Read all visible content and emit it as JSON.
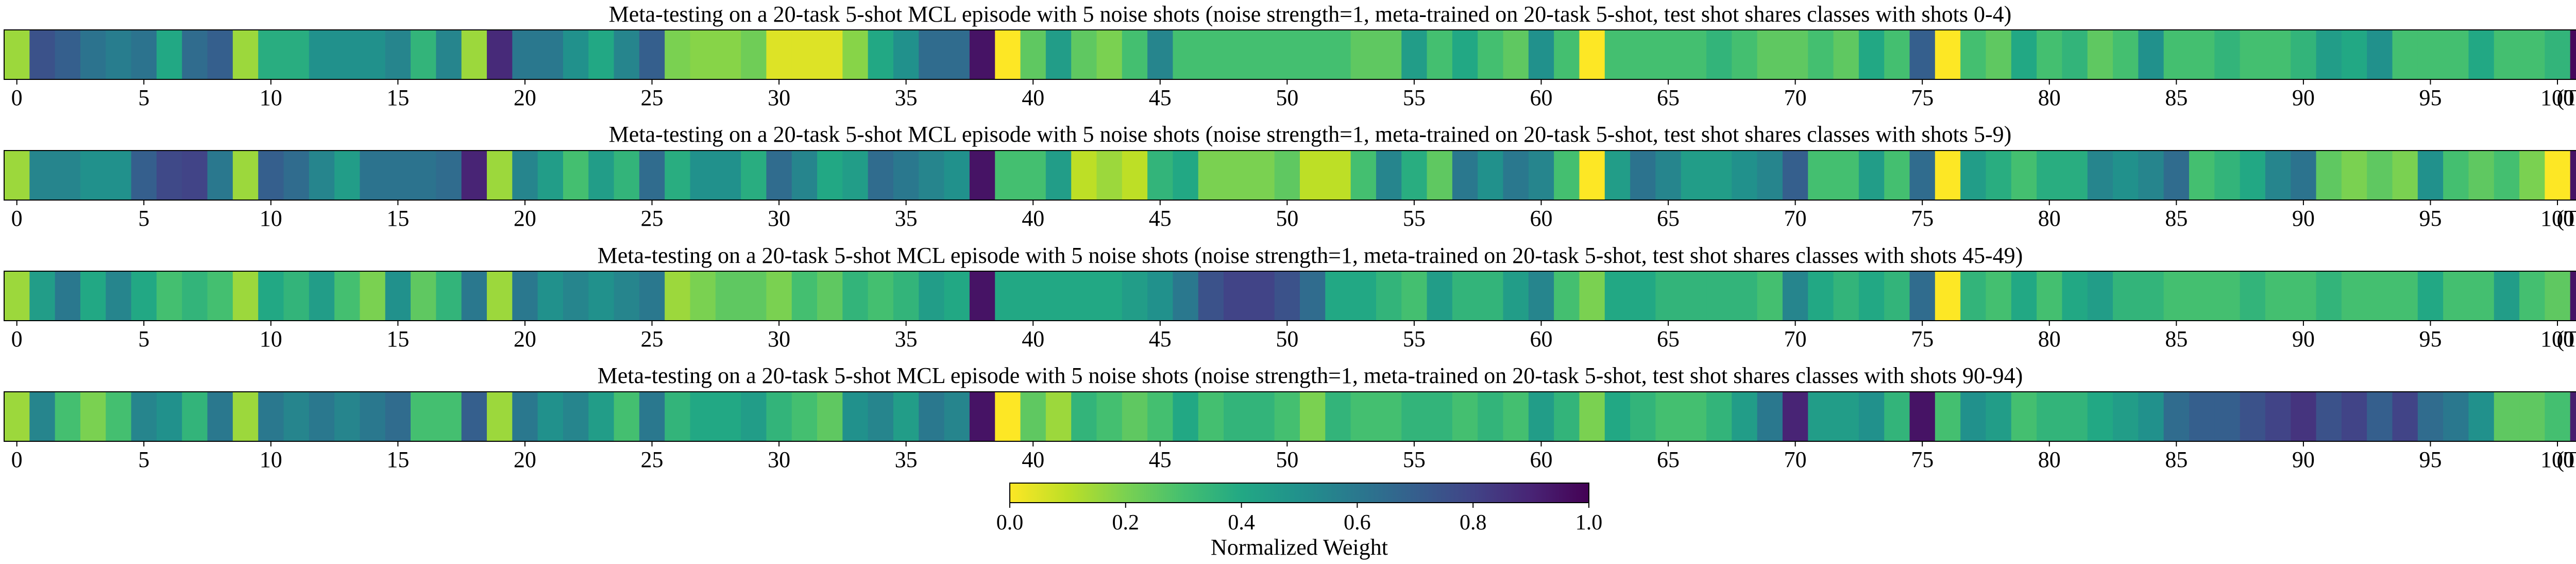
{
  "chart_data": {
    "type": "heatmap",
    "description_scale": "viridis_r",
    "colorbar": {
      "label": "Normalized Weight",
      "range": [
        0.0,
        1.0
      ],
      "ticks": [
        0.0,
        0.2,
        0.4,
        0.6,
        0.8,
        1.0
      ],
      "tick_labels": [
        "0.0",
        "0.2",
        "0.4",
        "0.6",
        "0.8",
        "1.0"
      ]
    },
    "x_ticks": [
      0,
      5,
      10,
      15,
      20,
      25,
      30,
      35,
      40,
      45,
      50,
      55,
      60,
      65,
      70,
      75,
      80,
      85,
      90,
      95,
      100
    ],
    "x_tick_labels": [
      "0",
      "5",
      "10",
      "15",
      "20",
      "25",
      "30",
      "35",
      "40",
      "45",
      "50",
      "55",
      "60",
      "65",
      "70",
      "75",
      "80",
      "85",
      "90",
      "95",
      "100"
    ],
    "last_label": "(Test)",
    "n_cells": 102,
    "rows": [
      {
        "title": "Meta-testing on a 20-task 5-shot MCL episode with 5 noise shots (noise strength=1, meta-trained on 20-task 5-shot, test shot shares classes with shots 0-4)",
        "values": [
          0.15,
          0.75,
          0.7,
          0.62,
          0.58,
          0.62,
          0.4,
          0.65,
          0.7,
          0.15,
          0.38,
          0.38,
          0.5,
          0.5,
          0.5,
          0.55,
          0.35,
          0.55,
          0.15,
          0.88,
          0.6,
          0.6,
          0.5,
          0.4,
          0.55,
          0.7,
          0.2,
          0.18,
          0.18,
          0.22,
          0.05,
          0.05,
          0.05,
          0.18,
          0.4,
          0.5,
          0.65,
          0.65,
          0.95,
          0.0,
          0.25,
          0.45,
          0.25,
          0.2,
          0.3,
          0.55,
          0.3,
          0.3,
          0.3,
          0.3,
          0.3,
          0.3,
          0.3,
          0.25,
          0.25,
          0.45,
          0.3,
          0.4,
          0.3,
          0.25,
          0.5,
          0.3,
          0.0,
          0.3,
          0.3,
          0.3,
          0.3,
          0.35,
          0.3,
          0.25,
          0.25,
          0.3,
          0.25,
          0.4,
          0.3,
          0.7,
          0.0,
          0.3,
          0.25,
          0.4,
          0.3,
          0.35,
          0.25,
          0.3,
          0.5,
          0.3,
          0.3,
          0.35,
          0.3,
          0.3,
          0.35,
          0.45,
          0.4,
          0.5,
          0.3,
          0.3,
          0.3,
          0.4,
          0.3,
          0.3,
          0.35,
          0.98
        ]
      },
      {
        "title": "Meta-testing on a 20-task 5-shot MCL episode with 5 noise shots (noise strength=1, meta-trained on 20-task 5-shot, test shot shares classes with shots 5-9)",
        "values": [
          0.15,
          0.55,
          0.55,
          0.5,
          0.5,
          0.7,
          0.78,
          0.8,
          0.6,
          0.15,
          0.7,
          0.65,
          0.55,
          0.45,
          0.62,
          0.62,
          0.62,
          0.65,
          0.9,
          0.15,
          0.55,
          0.45,
          0.3,
          0.45,
          0.35,
          0.65,
          0.38,
          0.5,
          0.5,
          0.38,
          0.65,
          0.55,
          0.4,
          0.45,
          0.65,
          0.6,
          0.55,
          0.5,
          0.95,
          0.3,
          0.3,
          0.45,
          0.1,
          0.15,
          0.1,
          0.35,
          0.4,
          0.2,
          0.2,
          0.2,
          0.25,
          0.1,
          0.1,
          0.3,
          0.55,
          0.38,
          0.25,
          0.6,
          0.5,
          0.6,
          0.55,
          0.3,
          0.0,
          0.45,
          0.62,
          0.55,
          0.45,
          0.45,
          0.5,
          0.55,
          0.7,
          0.3,
          0.3,
          0.45,
          0.3,
          0.65,
          0.0,
          0.45,
          0.38,
          0.3,
          0.38,
          0.38,
          0.55,
          0.5,
          0.55,
          0.65,
          0.3,
          0.35,
          0.4,
          0.55,
          0.62,
          0.25,
          0.2,
          0.25,
          0.2,
          0.5,
          0.3,
          0.25,
          0.3,
          0.2,
          0.0,
          0.95
        ]
      },
      {
        "title": "Meta-testing on a 20-task 5-shot MCL episode with 5 noise shots (noise strength=1, meta-trained on 20-task 5-shot, test shot shares classes with shots 45-49)",
        "values": [
          0.15,
          0.45,
          0.6,
          0.4,
          0.55,
          0.4,
          0.3,
          0.35,
          0.3,
          0.15,
          0.4,
          0.35,
          0.45,
          0.3,
          0.2,
          0.5,
          0.25,
          0.35,
          0.6,
          0.15,
          0.6,
          0.5,
          0.55,
          0.5,
          0.55,
          0.6,
          0.15,
          0.2,
          0.25,
          0.25,
          0.2,
          0.3,
          0.25,
          0.35,
          0.3,
          0.35,
          0.45,
          0.4,
          0.95,
          0.4,
          0.4,
          0.4,
          0.4,
          0.4,
          0.45,
          0.5,
          0.6,
          0.75,
          0.8,
          0.8,
          0.75,
          0.65,
          0.4,
          0.4,
          0.35,
          0.3,
          0.45,
          0.35,
          0.35,
          0.45,
          0.55,
          0.3,
          0.2,
          0.4,
          0.4,
          0.35,
          0.35,
          0.35,
          0.35,
          0.3,
          0.55,
          0.4,
          0.35,
          0.4,
          0.35,
          0.65,
          0.0,
          0.35,
          0.3,
          0.4,
          0.3,
          0.4,
          0.45,
          0.35,
          0.35,
          0.3,
          0.3,
          0.3,
          0.35,
          0.3,
          0.3,
          0.35,
          0.3,
          0.3,
          0.3,
          0.4,
          0.3,
          0.3,
          0.45,
          0.3,
          0.25,
          0.95
        ]
      },
      {
        "title": "Meta-testing on a 20-task 5-shot MCL episode with 5 noise shots (noise strength=1, meta-trained on 20-task 5-shot, test shot shares classes with shots 90-94)",
        "values": [
          0.15,
          0.55,
          0.3,
          0.2,
          0.3,
          0.55,
          0.5,
          0.35,
          0.6,
          0.15,
          0.6,
          0.55,
          0.6,
          0.55,
          0.6,
          0.65,
          0.3,
          0.3,
          0.7,
          0.15,
          0.6,
          0.5,
          0.55,
          0.45,
          0.3,
          0.6,
          0.35,
          0.4,
          0.4,
          0.45,
          0.35,
          0.3,
          0.25,
          0.5,
          0.55,
          0.45,
          0.6,
          0.55,
          0.95,
          0.0,
          0.25,
          0.15,
          0.35,
          0.3,
          0.25,
          0.3,
          0.4,
          0.3,
          0.35,
          0.35,
          0.3,
          0.2,
          0.35,
          0.3,
          0.3,
          0.35,
          0.35,
          0.3,
          0.35,
          0.3,
          0.45,
          0.35,
          0.2,
          0.4,
          0.35,
          0.3,
          0.3,
          0.35,
          0.45,
          0.6,
          0.9,
          0.45,
          0.45,
          0.5,
          0.35,
          0.95,
          0.3,
          0.5,
          0.45,
          0.3,
          0.35,
          0.35,
          0.4,
          0.45,
          0.5,
          0.65,
          0.7,
          0.7,
          0.75,
          0.8,
          0.85,
          0.75,
          0.8,
          0.7,
          0.8,
          0.65,
          0.6,
          0.5,
          0.25,
          0.25,
          0.3,
          0.92
        ]
      }
    ]
  },
  "colors": {
    "viridis_stops": [
      "#440154",
      "#482475",
      "#414487",
      "#355f8d",
      "#2a788e",
      "#21918c",
      "#22a884",
      "#44bf70",
      "#7ad151",
      "#bddf26",
      "#fde725"
    ]
  }
}
